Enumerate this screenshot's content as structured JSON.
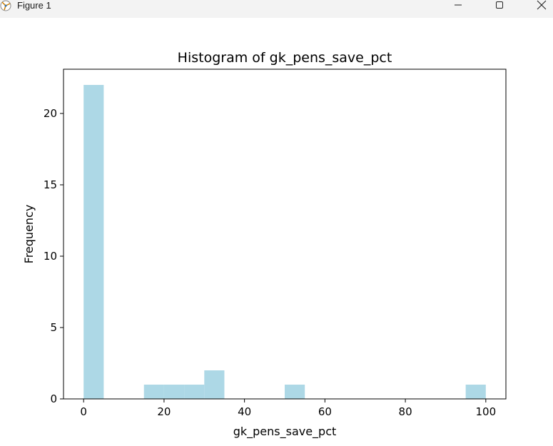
{
  "window": {
    "title": "Figure 1",
    "icons": {
      "app": "figure-app-icon",
      "minimize": "minimize-icon",
      "maximize": "maximize-icon",
      "close": "close-icon"
    }
  },
  "colors": {
    "bar": "#add8e6",
    "axis": "#000000",
    "titlebar": "#f3f3f3"
  },
  "chart_data": {
    "type": "bar",
    "title": "Histogram of gk_pens_save_pct",
    "xlabel": "gk_pens_save_pct",
    "ylabel": "Frequency",
    "xlim": [
      -5,
      105
    ],
    "ylim": [
      0,
      23.1
    ],
    "xticks": [
      0,
      20,
      40,
      60,
      80,
      100
    ],
    "yticks": [
      0,
      5,
      10,
      15,
      20
    ],
    "bins": [
      {
        "start": 0,
        "end": 5,
        "count": 22
      },
      {
        "start": 5,
        "end": 10,
        "count": 0
      },
      {
        "start": 10,
        "end": 15,
        "count": 0
      },
      {
        "start": 15,
        "end": 20,
        "count": 1
      },
      {
        "start": 20,
        "end": 25,
        "count": 1
      },
      {
        "start": 25,
        "end": 30,
        "count": 1
      },
      {
        "start": 30,
        "end": 35,
        "count": 2
      },
      {
        "start": 35,
        "end": 40,
        "count": 0
      },
      {
        "start": 40,
        "end": 45,
        "count": 0
      },
      {
        "start": 45,
        "end": 50,
        "count": 0
      },
      {
        "start": 50,
        "end": 55,
        "count": 1
      },
      {
        "start": 55,
        "end": 60,
        "count": 0
      },
      {
        "start": 60,
        "end": 65,
        "count": 0
      },
      {
        "start": 65,
        "end": 70,
        "count": 0
      },
      {
        "start": 70,
        "end": 75,
        "count": 0
      },
      {
        "start": 75,
        "end": 80,
        "count": 0
      },
      {
        "start": 80,
        "end": 85,
        "count": 0
      },
      {
        "start": 85,
        "end": 90,
        "count": 0
      },
      {
        "start": 90,
        "end": 95,
        "count": 0
      },
      {
        "start": 95,
        "end": 100,
        "count": 1
      }
    ],
    "grid": false,
    "legend": "none"
  }
}
